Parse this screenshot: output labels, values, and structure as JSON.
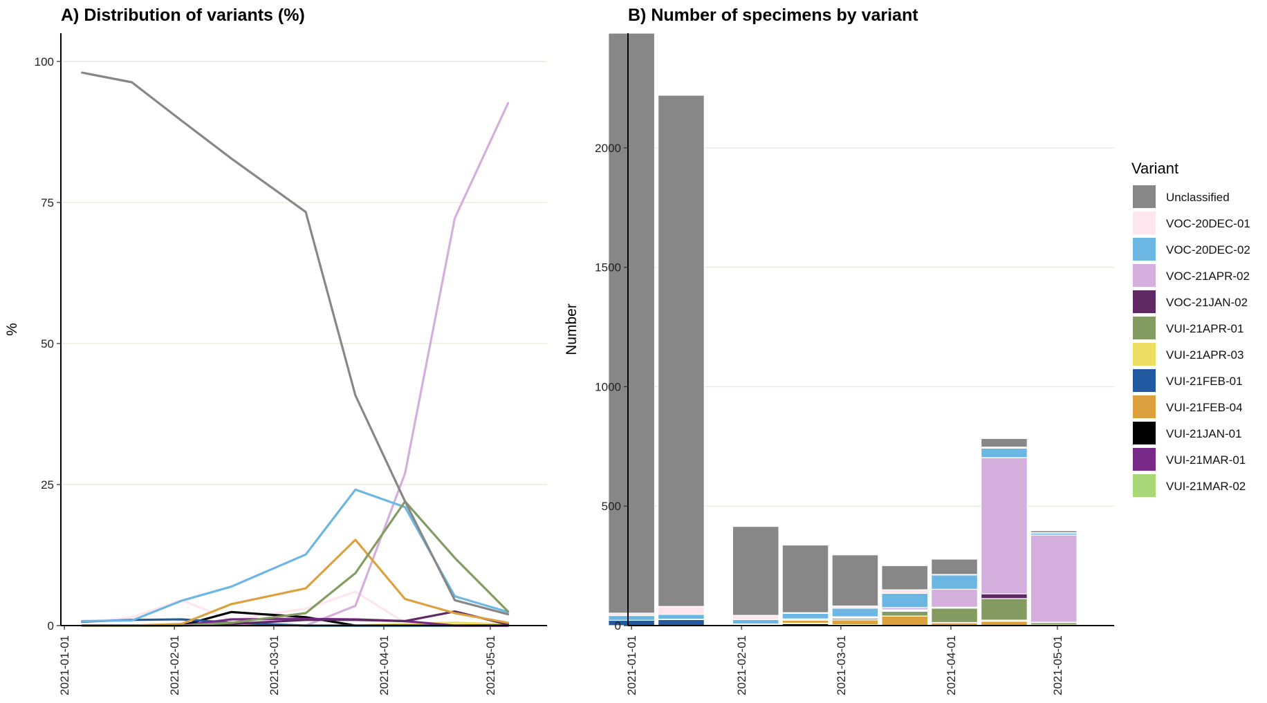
{
  "legend": {
    "title": "Variant",
    "items": [
      {
        "name": "Unclassified",
        "color": "#878787"
      },
      {
        "name": "VOC-20DEC-01",
        "color": "#FDE6EE"
      },
      {
        "name": "VOC-20DEC-02",
        "color": "#6CB6E3"
      },
      {
        "name": "VOC-21APR-02",
        "color": "#D4AFDD"
      },
      {
        "name": "VOC-21JAN-02",
        "color": "#5F2A63"
      },
      {
        "name": "VUI-21APR-01",
        "color": "#849C61"
      },
      {
        "name": "VUI-21APR-03",
        "color": "#EDDD61"
      },
      {
        "name": "VUI-21FEB-01",
        "color": "#2359A0"
      },
      {
        "name": "VUI-21FEB-04",
        "color": "#DCA13E"
      },
      {
        "name": "VUI-21JAN-01",
        "color": "#000000"
      },
      {
        "name": "VUI-21MAR-01",
        "color": "#772A88"
      },
      {
        "name": "VUI-21MAR-02",
        "color": "#A9D677"
      }
    ]
  },
  "chart_data": [
    {
      "type": "line",
      "title": "A) Distribution of variants (%)",
      "xlabel": "",
      "ylabel": "%",
      "ylim": [
        0,
        105
      ],
      "yticks": [
        0,
        25,
        50,
        75,
        100
      ],
      "xlim": [
        "2020-12-31",
        "2021-05-17"
      ],
      "xticks": [
        "2021-01-01",
        "2021-02-01",
        "2021-03-01",
        "2021-04-01",
        "2021-05-01"
      ],
      "grid": "horizontal",
      "x": [
        "2021-01-06",
        "2021-01-20",
        "2021-02-03",
        "2021-02-17",
        "2021-03-10",
        "2021-03-24",
        "2021-04-07",
        "2021-04-21",
        "2021-05-06"
      ],
      "series": [
        {
          "name": "Unclassified",
          "values": [
            98,
            96.3,
            89.5,
            82.8,
            73.3,
            40.8,
            22,
            4.5,
            2
          ]
        },
        {
          "name": "VOC-20DEC-01",
          "values": [
            0.5,
            1.5,
            4.5,
            1,
            3,
            6,
            0.5,
            0.5,
            0.2
          ]
        },
        {
          "name": "VOC-20DEC-02",
          "values": [
            0.8,
            0.9,
            4.4,
            6.9,
            12.6,
            24.1,
            21,
            5.2,
            2.4
          ]
        },
        {
          "name": "VOC-21APR-02",
          "values": [
            0,
            0,
            0,
            0,
            0,
            3.5,
            27,
            72.2,
            92.6
          ]
        },
        {
          "name": "VOC-21JAN-02",
          "values": [
            0,
            0,
            0,
            0.3,
            1,
            1,
            0.8,
            2.5,
            0.2
          ]
        },
        {
          "name": "VUI-21APR-01",
          "values": [
            0,
            0,
            0,
            0.5,
            2.2,
            9.3,
            22,
            12,
            2.5
          ]
        },
        {
          "name": "VUI-21APR-03",
          "values": [
            0,
            0,
            0,
            0,
            0,
            0,
            0.3,
            0.5,
            0.2
          ]
        },
        {
          "name": "VUI-21FEB-01",
          "values": [
            0.7,
            1,
            1.1,
            0.5,
            0,
            0,
            0,
            0,
            0
          ]
        },
        {
          "name": "VUI-21FEB-04",
          "values": [
            0,
            0,
            0.3,
            3.8,
            6.6,
            15.2,
            4.7,
            2.2,
            0.5
          ]
        },
        {
          "name": "VUI-21JAN-01",
          "values": [
            0,
            0,
            0,
            2.4,
            1.5,
            0,
            0,
            0,
            0
          ]
        },
        {
          "name": "VUI-21MAR-01",
          "values": [
            0,
            0,
            0,
            1.1,
            1.2,
            1.1,
            0.8,
            0,
            0
          ]
        },
        {
          "name": "VUI-21MAR-02",
          "values": [
            0,
            0,
            0,
            0,
            0,
            0,
            0.2,
            0,
            0
          ]
        }
      ]
    },
    {
      "type": "bar",
      "stacked": true,
      "title": "B) Number of specimens by variant",
      "xlabel": "",
      "ylabel": "Number",
      "ylim": [
        0,
        2480
      ],
      "yticks": [
        0,
        500,
        1000,
        1500,
        2000
      ],
      "xlim": [
        "2020-12-31",
        "2021-05-17"
      ],
      "xticks": [
        "2021-01-01",
        "2021-02-01",
        "2021-03-01",
        "2021-04-01",
        "2021-05-01"
      ],
      "grid": "horizontal",
      "x": [
        "2021-01-01",
        "2021-01-15",
        "2021-02-05",
        "2021-02-19",
        "2021-03-05",
        "2021-03-19",
        "2021-04-02",
        "2021-04-16",
        "2021-04-30"
      ],
      "bar_width_days": 13,
      "series": [
        {
          "name": "VUI-21JAN-01",
          "values": [
            0,
            0,
            0,
            8,
            4,
            0,
            0,
            0,
            0
          ]
        },
        {
          "name": "VUI-21FEB-01",
          "values": [
            22,
            25,
            5,
            2,
            0,
            0,
            0,
            0,
            0
          ]
        },
        {
          "name": "VUI-21FEB-04",
          "values": [
            0,
            2,
            2,
            12,
            20,
            40,
            12,
            18,
            2
          ]
        },
        {
          "name": "VUI-21APR-03",
          "values": [
            0,
            0,
            0,
            0,
            0,
            0,
            1,
            5,
            1
          ]
        },
        {
          "name": "VUI-21APR-01",
          "values": [
            0,
            0,
            0,
            2,
            7,
            20,
            60,
            90,
            10
          ]
        },
        {
          "name": "VUI-21MAR-02",
          "values": [
            0,
            0,
            0,
            0,
            0,
            0,
            0,
            0,
            0
          ]
        },
        {
          "name": "VUI-21MAR-01",
          "values": [
            0,
            0,
            0,
            3,
            3,
            3,
            2,
            0,
            0
          ]
        },
        {
          "name": "VOC-21JAN-02",
          "values": [
            0,
            0,
            0,
            1,
            3,
            3,
            2,
            20,
            1
          ]
        },
        {
          "name": "VOC-21APR-02",
          "values": [
            0,
            0,
            0,
            0,
            0,
            9,
            75,
            570,
            365
          ]
        },
        {
          "name": "VOC-20DEC-02",
          "values": [
            20,
            20,
            18,
            23,
            36,
            60,
            60,
            40,
            9
          ]
        },
        {
          "name": "VOC-20DEC-01",
          "values": [
            10,
            33,
            18,
            3,
            9,
            15,
            2,
            4,
            1
          ]
        },
        {
          "name": "Unclassified",
          "values": [
            2430,
            2140,
            372,
            283,
            214,
            101,
            64,
            36,
            8
          ]
        }
      ]
    }
  ]
}
